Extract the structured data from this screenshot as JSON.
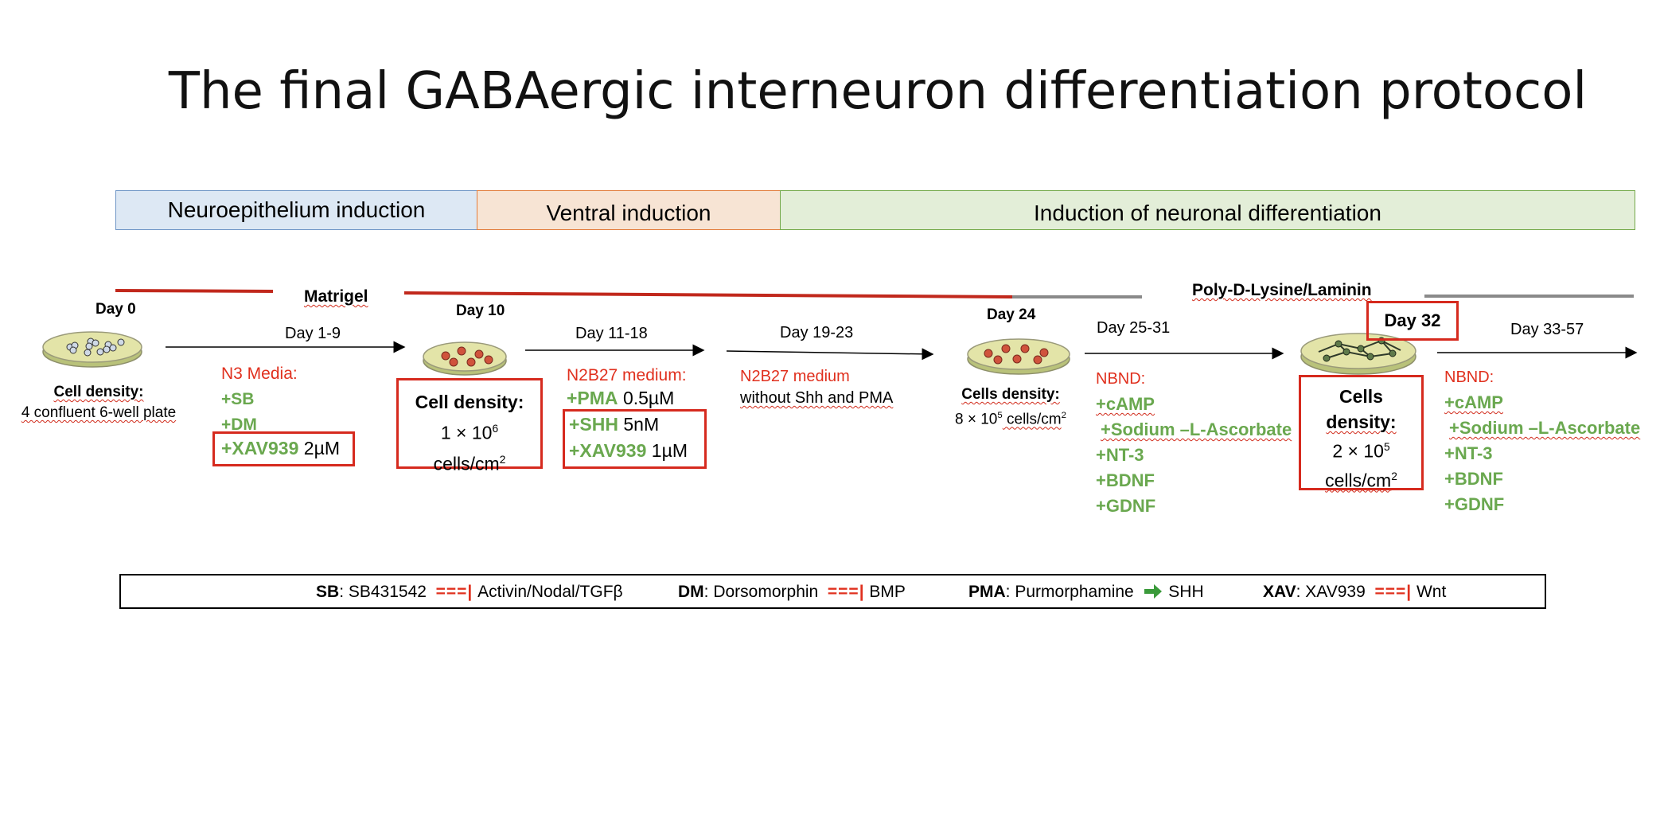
{
  "title": "The final GABAergic interneuron differentiation protocol",
  "phases": [
    "Neuroepithelium induction",
    "Ventral induction",
    "Induction of neuronal differentiation"
  ],
  "coatings": {
    "matrigel": "Matrigel",
    "pdl": "Poly-D-Lysine/Laminin"
  },
  "days": {
    "d0": "Day 0",
    "d1_9": "Day 1-9",
    "d10": "Day 10",
    "d11_18": "Day 11-18",
    "d19_23": "Day 19-23",
    "d24": "Day 24",
    "d25_31": "Day 25-31",
    "d32": "Day 32",
    "d33_57": "Day 33-57"
  },
  "day0": {
    "density_label": "Cell density:",
    "density_value": "4 confluent 6-well plate"
  },
  "stage1": {
    "medium": "N3 Media:",
    "items": [
      "+SB",
      "+DM"
    ],
    "xav": "+XAV939",
    "xav_conc": "2µM"
  },
  "day10": {
    "density_label": "Cell density:",
    "value_a": "1 × 10",
    "value_exp": "6",
    "value_b": "cells/cm",
    "value_exp2": "2"
  },
  "stage2": {
    "medium": "N2B27 medium:",
    "pma": "+PMA",
    "pma_conc": "0.5µM",
    "shh": "+SHH",
    "shh_conc": "5nM",
    "xav": "+XAV939",
    "xav_conc": "1µM"
  },
  "stage3": {
    "medium": "N2B27 medium",
    "note": "without Shh and PMA"
  },
  "day24": {
    "density_label": "Cells density:",
    "value_a": "8 × 10",
    "value_exp": "5",
    "value_b": " cells/cm",
    "value_exp2": "2"
  },
  "stage4": {
    "medium": "NBND:",
    "items": [
      "+cAMP",
      "+Sodium –L-Ascorbate",
      "+NT-3",
      "+BDNF",
      "+GDNF"
    ]
  },
  "day32": {
    "label1": "Cells",
    "label2": "density:",
    "value_a": "2 × 10",
    "value_exp": "5",
    "value_b": "cells/cm",
    "value_exp2": "2"
  },
  "stage5": {
    "medium": "NBND:",
    "items": [
      "+cAMP",
      "+Sodium –L-Ascorbate",
      "+NT-3",
      "+BDNF",
      "+GDNF"
    ]
  },
  "legend": {
    "sb_key": "SB",
    "sb_val": ": SB431542",
    "sb_target": "Activin/Nodal/TGFβ",
    "dm_key": "DM",
    "dm_val": ": Dorsomorphin",
    "dm_target": "BMP",
    "pma_key": "PMA",
    "pma_val": ": Purmorphamine",
    "pma_target": "SHH",
    "xav_key": "XAV",
    "xav_val": ": XAV939",
    "xav_target": "Wnt",
    "inhibit_symbol": "===|"
  },
  "colors": {
    "red": "#e0301e",
    "green": "#6aa84f",
    "phase1": "#dde8f4",
    "phase2": "#f7e4d4",
    "phase3": "#e3eed8"
  }
}
